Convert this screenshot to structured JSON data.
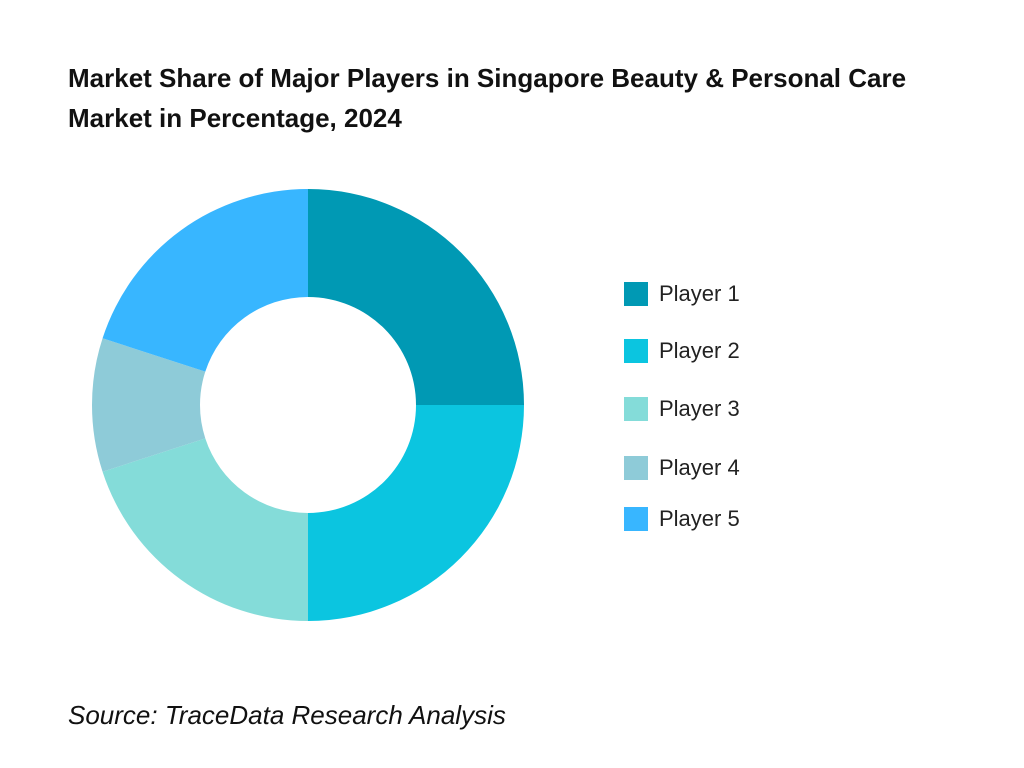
{
  "chart_data": {
    "type": "pie",
    "title": "Market Share of Major Players in Singapore Beauty & Personal Care Market in Percentage, 2024",
    "categories": [
      "Player 1",
      "Player 2",
      "Player 3",
      "Player 4",
      "Player 5"
    ],
    "values": [
      25,
      25,
      20,
      10,
      20
    ],
    "colors": [
      "#0099B4",
      "#0BC5E0",
      "#84DCD9",
      "#8ECBD8",
      "#38B6FF"
    ],
    "legend_position": "right",
    "hole": "donut"
  },
  "source": "Source: TraceData Research Analysis"
}
